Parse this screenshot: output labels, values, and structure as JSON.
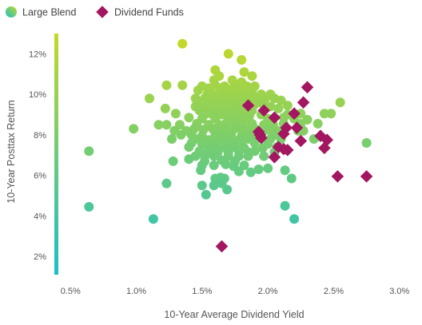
{
  "chart_data": {
    "type": "scatter",
    "title": "",
    "xlabel": "10-Year Average Dividend Yield",
    "ylabel": "10-Year Posttax Return",
    "xlim": [
      0.45,
      3.05
    ],
    "ylim": [
      1.1,
      13.0
    ],
    "x_ticks": [
      0.5,
      1.0,
      1.5,
      2.0,
      2.5,
      3.0
    ],
    "x_tick_labels": [
      "0.5%",
      "1.0%",
      "1.5%",
      "2.0%",
      "2.5%",
      "3.0%"
    ],
    "y_ticks": [
      2,
      4,
      6,
      8,
      10,
      12
    ],
    "y_tick_labels": [
      "2%",
      "4%",
      "6%",
      "8%",
      "10%",
      "12%"
    ],
    "grid": false,
    "legend_placement": "top-left",
    "colorbar": {
      "low_color": "#19bfc8",
      "high_color": "#c2d92a",
      "range": [
        1.1,
        12.5
      ]
    },
    "colors": {
      "teal": "#19bfc8",
      "green": "#8fcf5e",
      "lime": "#c2d92a",
      "dividend": "#a2175f",
      "text": "#555555"
    },
    "series": [
      {
        "name": "Large Blend",
        "marker": "circle",
        "points": [
          [
            1.35,
            12.5
          ],
          [
            1.7,
            12.0
          ],
          [
            1.8,
            11.7
          ],
          [
            1.6,
            11.2
          ],
          [
            1.82,
            11.1
          ],
          [
            1.88,
            10.9
          ],
          [
            1.63,
            10.9
          ],
          [
            1.73,
            10.7
          ],
          [
            1.59,
            10.7
          ],
          [
            1.8,
            10.6
          ],
          [
            1.35,
            10.45
          ],
          [
            1.23,
            10.45
          ],
          [
            1.5,
            10.4
          ],
          [
            1.6,
            10.45
          ],
          [
            1.67,
            10.4
          ],
          [
            1.76,
            10.4
          ],
          [
            1.84,
            10.4
          ],
          [
            1.9,
            10.4
          ],
          [
            1.55,
            10.3
          ],
          [
            1.64,
            10.3
          ],
          [
            1.72,
            10.25
          ],
          [
            1.81,
            10.25
          ],
          [
            1.88,
            10.2
          ],
          [
            1.47,
            10.2
          ],
          [
            1.54,
            10.0
          ],
          [
            1.58,
            10.0
          ],
          [
            1.63,
            10.0
          ],
          [
            1.69,
            10.05
          ],
          [
            1.75,
            10.0
          ],
          [
            1.82,
            10.0
          ],
          [
            1.88,
            10.0
          ],
          [
            1.95,
            10.0
          ],
          [
            2.02,
            10.0
          ],
          [
            1.45,
            9.8
          ],
          [
            1.52,
            9.8
          ],
          [
            1.57,
            9.75
          ],
          [
            1.6,
            9.8
          ],
          [
            1.66,
            9.8
          ],
          [
            1.71,
            9.75
          ],
          [
            1.77,
            9.8
          ],
          [
            1.82,
            9.75
          ],
          [
            1.87,
            9.8
          ],
          [
            1.92,
            9.75
          ],
          [
            1.98,
            9.8
          ],
          [
            2.05,
            9.8
          ],
          [
            2.1,
            9.7
          ],
          [
            1.1,
            9.8
          ],
          [
            1.5,
            9.6
          ],
          [
            1.56,
            9.55
          ],
          [
            1.61,
            9.6
          ],
          [
            1.67,
            9.55
          ],
          [
            1.73,
            9.55
          ],
          [
            1.79,
            9.55
          ],
          [
            1.85,
            9.6
          ],
          [
            1.9,
            9.5
          ],
          [
            1.96,
            9.55
          ],
          [
            1.45,
            9.4
          ],
          [
            1.53,
            9.35
          ],
          [
            1.59,
            9.35
          ],
          [
            1.64,
            9.4
          ],
          [
            1.7,
            9.35
          ],
          [
            1.76,
            9.4
          ],
          [
            1.83,
            9.35
          ],
          [
            2.02,
            9.4
          ],
          [
            2.15,
            9.45
          ],
          [
            1.22,
            9.3
          ],
          [
            1.48,
            9.2
          ],
          [
            1.56,
            9.15
          ],
          [
            1.62,
            9.2
          ],
          [
            1.68,
            9.15
          ],
          [
            1.75,
            9.2
          ],
          [
            1.82,
            9.15
          ],
          [
            1.88,
            9.2
          ],
          [
            2.08,
            9.3
          ],
          [
            1.3,
            9.05
          ],
          [
            1.52,
            9.0
          ],
          [
            1.58,
            9.0
          ],
          [
            1.65,
            9.0
          ],
          [
            1.72,
            9.0
          ],
          [
            1.79,
            9.0
          ],
          [
            1.86,
            8.95
          ],
          [
            1.95,
            9.0
          ],
          [
            2.15,
            9.0
          ],
          [
            2.25,
            9.05
          ],
          [
            2.43,
            9.05
          ],
          [
            2.48,
            9.05
          ],
          [
            2.55,
            9.6
          ],
          [
            1.4,
            8.85
          ],
          [
            1.5,
            8.8
          ],
          [
            1.6,
            8.8
          ],
          [
            1.7,
            8.8
          ],
          [
            1.76,
            8.75
          ],
          [
            1.82,
            8.8
          ],
          [
            2.0,
            8.8
          ],
          [
            2.12,
            8.85
          ],
          [
            2.2,
            8.8
          ],
          [
            2.3,
            8.75
          ],
          [
            1.17,
            8.5
          ],
          [
            1.23,
            8.5
          ],
          [
            1.33,
            8.5
          ],
          [
            1.46,
            8.55
          ],
          [
            1.55,
            8.5
          ],
          [
            1.63,
            8.5
          ],
          [
            1.68,
            8.55
          ],
          [
            1.75,
            8.5
          ],
          [
            1.81,
            8.5
          ],
          [
            1.88,
            8.55
          ],
          [
            1.97,
            8.5
          ],
          [
            2.04,
            8.5
          ],
          [
            2.12,
            8.55
          ],
          [
            2.25,
            8.55
          ],
          [
            2.38,
            8.55
          ],
          [
            0.98,
            8.3
          ],
          [
            1.29,
            8.2
          ],
          [
            1.38,
            8.2
          ],
          [
            1.44,
            8.3
          ],
          [
            1.51,
            8.25
          ],
          [
            1.58,
            8.3
          ],
          [
            1.62,
            8.2
          ],
          [
            1.68,
            8.3
          ],
          [
            1.73,
            8.2
          ],
          [
            1.79,
            8.3
          ],
          [
            1.84,
            8.2
          ],
          [
            1.9,
            8.3
          ],
          [
            2.0,
            8.25
          ],
          [
            2.07,
            8.2
          ],
          [
            2.23,
            8.2
          ],
          [
            2.27,
            8.2
          ],
          [
            1.34,
            8.0
          ],
          [
            1.42,
            8.0
          ],
          [
            1.5,
            7.95
          ],
          [
            1.6,
            8.0
          ],
          [
            1.66,
            7.95
          ],
          [
            1.72,
            8.0
          ],
          [
            1.8,
            7.95
          ],
          [
            1.88,
            8.0
          ],
          [
            1.95,
            7.95
          ],
          [
            2.05,
            8.0
          ],
          [
            1.27,
            7.8
          ],
          [
            1.45,
            7.8
          ],
          [
            1.55,
            7.75
          ],
          [
            1.63,
            7.8
          ],
          [
            1.7,
            7.75
          ],
          [
            1.78,
            7.75
          ],
          [
            1.85,
            7.8
          ],
          [
            2.02,
            7.8
          ],
          [
            2.1,
            7.8
          ],
          [
            2.35,
            7.8
          ],
          [
            1.42,
            7.6
          ],
          [
            1.5,
            7.55
          ],
          [
            1.57,
            7.6
          ],
          [
            1.65,
            7.55
          ],
          [
            1.73,
            7.6
          ],
          [
            1.8,
            7.55
          ],
          [
            1.9,
            7.6
          ],
          [
            2.0,
            7.55
          ],
          [
            2.75,
            7.6
          ],
          [
            1.4,
            7.4
          ],
          [
            1.55,
            7.35
          ],
          [
            1.6,
            7.4
          ],
          [
            1.68,
            7.35
          ],
          [
            1.74,
            7.4
          ],
          [
            1.82,
            7.35
          ],
          [
            1.96,
            7.35
          ],
          [
            2.07,
            7.4
          ],
          [
            1.48,
            7.2
          ],
          [
            1.55,
            7.15
          ],
          [
            1.62,
            7.15
          ],
          [
            1.7,
            7.15
          ],
          [
            1.78,
            7.2
          ],
          [
            1.85,
            7.15
          ],
          [
            1.9,
            7.2
          ],
          [
            2.05,
            7.15
          ],
          [
            0.64,
            7.2
          ],
          [
            1.45,
            6.95
          ],
          [
            1.52,
            6.95
          ],
          [
            1.59,
            6.95
          ],
          [
            1.7,
            6.95
          ],
          [
            1.78,
            6.95
          ],
          [
            1.85,
            6.95
          ],
          [
            1.97,
            6.95
          ],
          [
            1.4,
            6.8
          ],
          [
            1.52,
            6.7
          ],
          [
            1.65,
            6.75
          ],
          [
            1.75,
            6.7
          ],
          [
            1.28,
            6.7
          ],
          [
            1.5,
            6.5
          ],
          [
            1.59,
            6.5
          ],
          [
            1.68,
            6.55
          ],
          [
            1.74,
            6.45
          ],
          [
            1.82,
            6.5
          ],
          [
            1.93,
            6.3
          ],
          [
            2.0,
            6.35
          ],
          [
            1.49,
            6.25
          ],
          [
            1.78,
            6.2
          ],
          [
            1.87,
            6.15
          ],
          [
            2.13,
            6.25
          ],
          [
            1.6,
            5.85
          ],
          [
            1.64,
            5.9
          ],
          [
            1.67,
            5.85
          ],
          [
            2.18,
            5.85
          ],
          [
            1.23,
            5.6
          ],
          [
            1.5,
            5.5
          ],
          [
            1.59,
            5.5
          ],
          [
            1.65,
            5.6
          ],
          [
            1.69,
            5.3
          ],
          [
            1.53,
            5.05
          ],
          [
            0.64,
            4.45
          ],
          [
            1.13,
            3.85
          ],
          [
            2.13,
            4.5
          ],
          [
            2.2,
            3.85
          ]
        ]
      },
      {
        "name": "Dividend Funds",
        "marker": "diamond",
        "points": [
          [
            2.3,
            10.35
          ],
          [
            1.85,
            9.45
          ],
          [
            2.27,
            9.6
          ],
          [
            1.97,
            9.2
          ],
          [
            2.05,
            8.85
          ],
          [
            2.2,
            9.05
          ],
          [
            2.14,
            8.35
          ],
          [
            2.22,
            8.35
          ],
          [
            1.93,
            8.15
          ],
          [
            1.94,
            8.0
          ],
          [
            1.95,
            7.85
          ],
          [
            2.4,
            7.95
          ],
          [
            2.45,
            7.75
          ],
          [
            2.25,
            7.7
          ],
          [
            2.12,
            8.05
          ],
          [
            2.12,
            7.3
          ],
          [
            2.15,
            7.25
          ],
          [
            2.08,
            7.4
          ],
          [
            2.05,
            6.9
          ],
          [
            2.43,
            7.35
          ],
          [
            2.53,
            5.95
          ],
          [
            2.75,
            5.95
          ],
          [
            1.65,
            2.5
          ]
        ]
      }
    ]
  }
}
